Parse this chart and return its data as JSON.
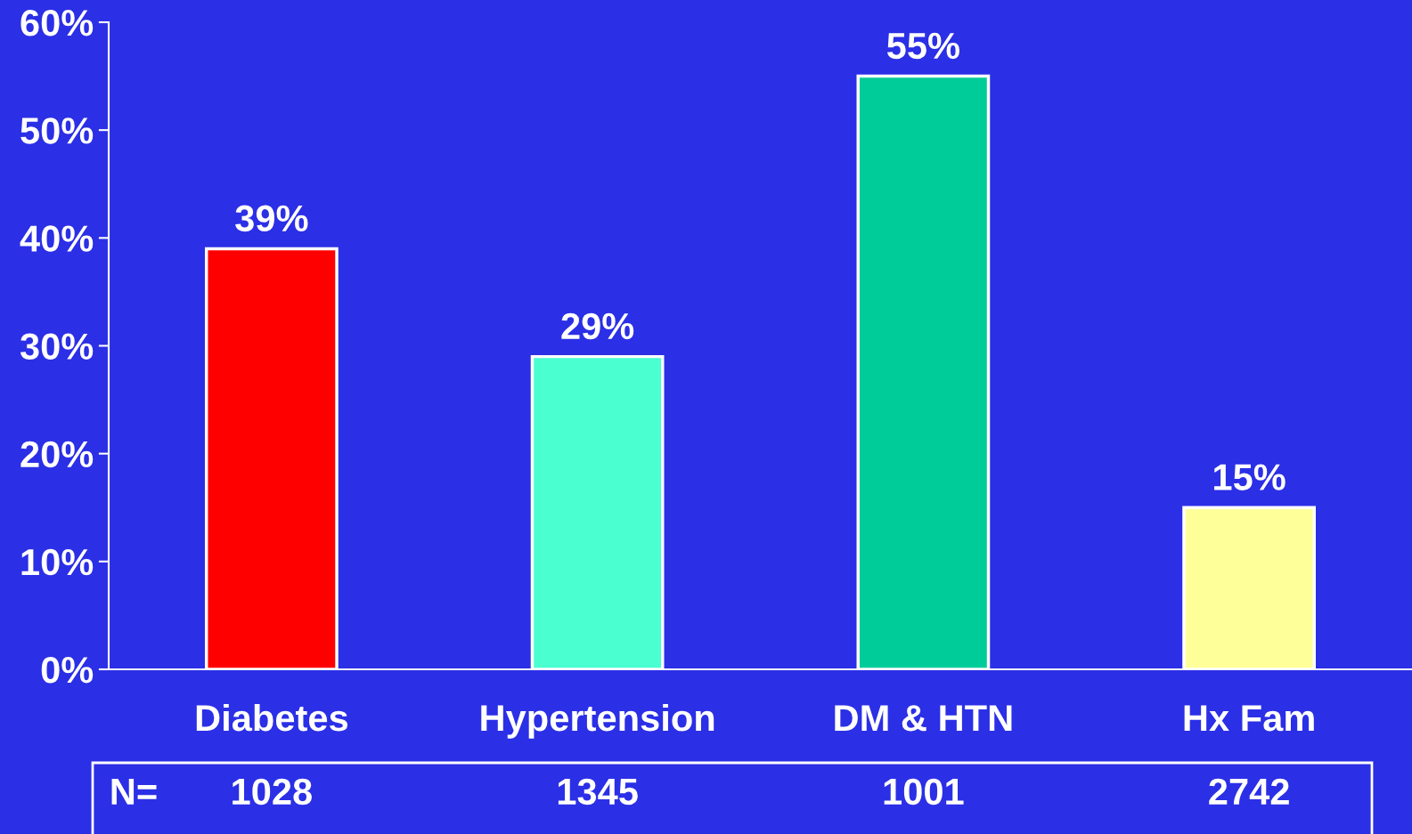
{
  "chart_data": {
    "type": "bar",
    "categories": [
      "Diabetes",
      "Hypertension",
      "DM & HTN",
      "Hx Fam"
    ],
    "values": [
      39,
      29,
      55,
      15
    ],
    "colors": [
      "#ff0000",
      "#4affd0",
      "#00cc99",
      "#ffff99"
    ],
    "value_labels": [
      "39%",
      "29%",
      "55%",
      "15%"
    ],
    "ylim": [
      0,
      60
    ],
    "yticks": [
      {
        "value": 0,
        "label": "0%"
      },
      {
        "value": 10,
        "label": "10%"
      },
      {
        "value": 20,
        "label": "20%"
      },
      {
        "value": 30,
        "label": "30%"
      },
      {
        "value": 40,
        "label": "40%"
      },
      {
        "value": 50,
        "label": "50%"
      },
      {
        "value": 60,
        "label": "60%"
      }
    ],
    "grid": false,
    "legend": false,
    "annotations": [
      "N=",
      "1028",
      "1345",
      "1001",
      "2742"
    ]
  }
}
